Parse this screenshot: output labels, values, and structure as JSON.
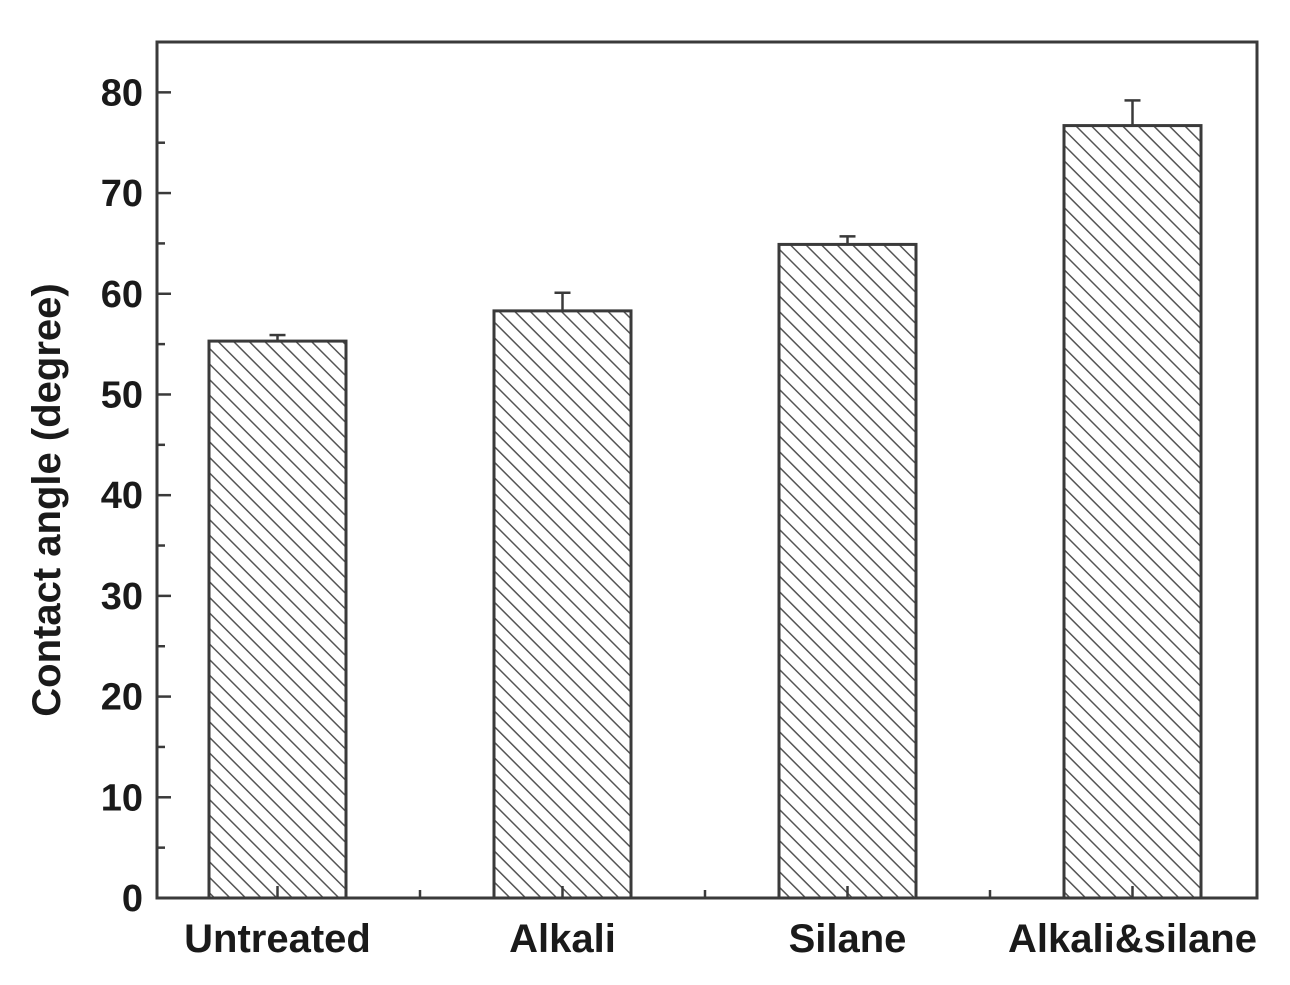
{
  "chart_data": {
    "type": "bar",
    "categories": [
      "Untreated",
      "Alkali",
      "Silane",
      "Alkali&silane"
    ],
    "values": [
      55.3,
      58.3,
      64.9,
      76.7
    ],
    "error": [
      0.6,
      1.8,
      0.8,
      2.5
    ],
    "title": "",
    "xlabel": "",
    "ylabel": "Contact angle (degree)",
    "ylim": [
      0,
      85
    ],
    "yticks": [
      0,
      10,
      20,
      30,
      40,
      50,
      60,
      70,
      80
    ],
    "grid": false,
    "bar_fill": "hatched",
    "bar_color": "#ffffff",
    "hatch_color": "#555555",
    "axis_color": "#3a3a3a"
  }
}
